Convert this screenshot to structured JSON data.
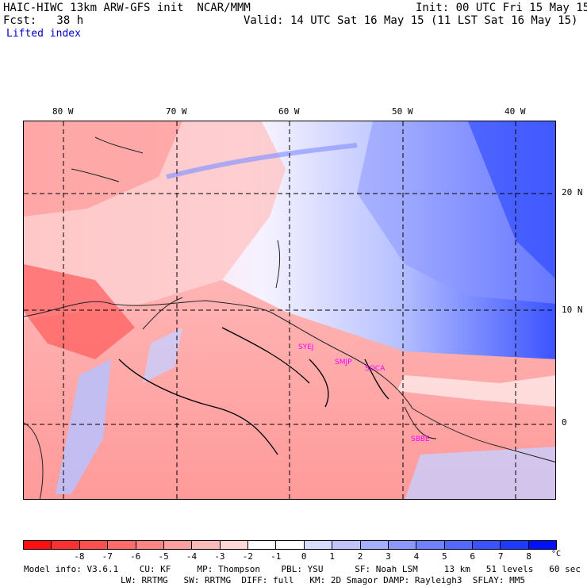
{
  "header": {
    "title": "HAIC-HIWC 13km ARW-GFS init  NCAR/MMM",
    "init": "Init: 00 UTC Fri 15 May 15",
    "fcst": "Fcst:   38 h",
    "valid": "Valid: 14 UTC Sat 16 May 15 (11 LST Sat 16 May 15)",
    "field": "Lifted index"
  },
  "map": {
    "lon_labels": [
      "80 W",
      "70 W",
      "60 W",
      "50 W",
      "40 W"
    ],
    "lat_labels": [
      "20 N",
      "10 N",
      "0"
    ],
    "stations": [
      "SYEJ",
      "SMJP",
      "SOCA",
      "SBBE"
    ]
  },
  "colorbar": {
    "ticks": [
      "-8",
      "-7",
      "-6",
      "-5",
      "-4",
      "-3",
      "-2",
      "-1",
      "0",
      "1",
      "2",
      "3",
      "4",
      "5",
      "6",
      "7",
      "8"
    ],
    "unit": "°C",
    "colors": [
      "#ff1010",
      "#ff3030",
      "#ff5050",
      "#ff6a6a",
      "#ff8585",
      "#ffa0a0",
      "#ffbaba",
      "#ffd6d6",
      "#ffffff",
      "#ffffff",
      "#d8dcff",
      "#bfc4ff",
      "#a6aeff",
      "#8c97ff",
      "#7080ff",
      "#5468ff",
      "#3a52ff",
      "#1e3aff",
      "#0010ff"
    ]
  },
  "footer": {
    "line1": "Model info: V3.6.1    CU: KF     MP: Thompson    PBL: YSU      SF: Noah LSM     13 km   51 levels   60 sec",
    "line2": "LW: RRTMG   SW: RRTMG  DIFF: full   KM: 2D Smagor DAMP: Rayleigh3  SFLAY: MM5"
  }
}
